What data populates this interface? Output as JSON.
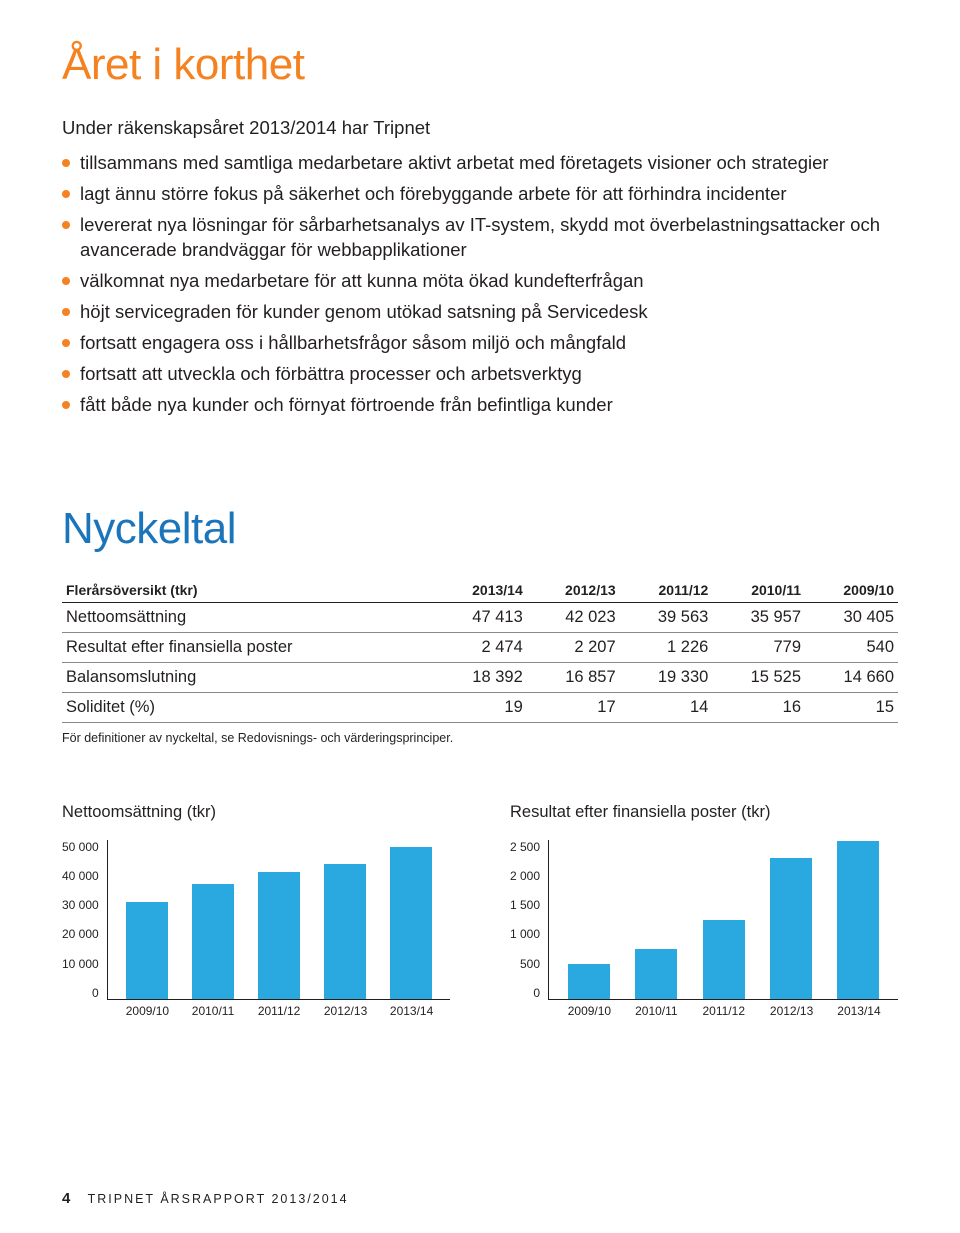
{
  "colors": {
    "accent": "#f58220",
    "nyckeltal": "#1b75bb",
    "bar": "#29a9e0",
    "text": "#231f20"
  },
  "heading1": "Året i korthet",
  "intro": "Under räkenskapsåret 2013/2014 har Tripnet",
  "bullets": [
    "tillsammans med samtliga medarbetare aktivt arbetat med företagets visioner och strategier",
    "lagt ännu större fokus på säkerhet och förebyggande arbete för att förhindra incidenter",
    "levererat nya lösningar för sårbarhetsanalys av IT-system, skydd mot överbelastningsattacker och avancerade brandväggar för webbapplikationer",
    "välkomnat nya medarbetare för att kunna möta ökad kundefterfrågan",
    "höjt servicegraden för kunder genom utökad satsning på Servicedesk",
    "fortsatt engagera oss i hållbarhetsfrågor såsom miljö och mångfald",
    "fortsatt att utveckla och förbättra processer och arbetsverktyg",
    "fått både nya kunder och förnyat förtroende från befintliga kunder"
  ],
  "heading2": "Nyckeltal",
  "table": {
    "header_label": "Flerårsöversikt (tkr)",
    "columns": [
      "2013/14",
      "2012/13",
      "2011/12",
      "2010/11",
      "2009/10"
    ],
    "rows": [
      {
        "label": "Nettoomsättning",
        "cells": [
          "47 413",
          "42 023",
          "39 563",
          "35 957",
          "30 405"
        ]
      },
      {
        "label": "Resultat efter finansiella poster",
        "cells": [
          "2 474",
          "2 207",
          "1 226",
          "779",
          "540"
        ]
      },
      {
        "label": "Balansomslutning",
        "cells": [
          "18 392",
          "16 857",
          "19 330",
          "15 525",
          "14 660"
        ]
      },
      {
        "label": "Soliditet (%)",
        "cells": [
          "19",
          "17",
          "14",
          "16",
          "15"
        ]
      }
    ],
    "footnote": "För definitioner av nyckeltal, se Redovisnings- och värderingsprinciper."
  },
  "charts": [
    {
      "title": "Nettoomsättning (tkr)",
      "type": "bar",
      "ylim": [
        0,
        50000
      ],
      "ytick_step": 10000,
      "yticks": [
        "50 000",
        "40 000",
        "30 000",
        "20 000",
        "10 000",
        "0"
      ],
      "categories": [
        "2009/10",
        "2010/11",
        "2011/12",
        "2012/13",
        "2013/14"
      ],
      "values": [
        30405,
        35957,
        39563,
        42023,
        47413
      ],
      "bar_color": "#29a9e0",
      "label_fontsize": 12
    },
    {
      "title": "Resultat efter finansiella poster (tkr)",
      "type": "bar",
      "ylim": [
        0,
        2500
      ],
      "ytick_step": 500,
      "yticks": [
        "2 500",
        "2 000",
        "1 500",
        "1 000",
        "500",
        "0"
      ],
      "categories": [
        "2009/10",
        "2010/11",
        "2011/12",
        "2012/13",
        "2013/14"
      ],
      "values": [
        540,
        779,
        1226,
        2207,
        2474
      ],
      "bar_color": "#29a9e0",
      "label_fontsize": 12
    }
  ],
  "footer": {
    "page_number": "4",
    "text": "TRIPNET ÅRSRAPPORT 2013/2014"
  }
}
